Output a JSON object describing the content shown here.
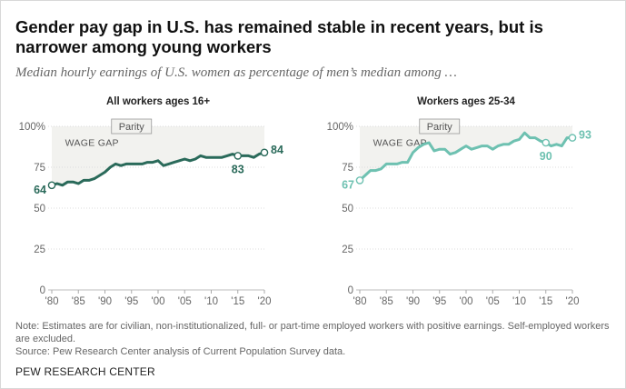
{
  "title": "Gender pay gap in U.S. has remained stable in recent years, but is narrower among young workers",
  "subtitle": "Median hourly earnings of U.S. women as percentage of men’s median among …",
  "notes": {
    "note": "Note: Estimates are for civilian, non-institutionalized, full- or part-time employed workers with positive earnings. Self-employed workers are excluded.",
    "source": "Source: Pew Research Center analysis of Current Population Survey data."
  },
  "brand": "PEW RESEARCH CENTER",
  "chart_data": [
    {
      "type": "line",
      "title": "All workers ages 16+",
      "color": "#2a6a5a",
      "x": [
        1980,
        1981,
        1982,
        1983,
        1984,
        1985,
        1986,
        1987,
        1988,
        1989,
        1990,
        1991,
        1992,
        1993,
        1994,
        1995,
        1996,
        1997,
        1998,
        1999,
        2000,
        2001,
        2002,
        2003,
        2004,
        2005,
        2006,
        2007,
        2008,
        2009,
        2010,
        2011,
        2012,
        2013,
        2014,
        2015,
        2016,
        2017,
        2018,
        2019,
        2020
      ],
      "values": [
        64,
        65,
        64,
        66,
        66,
        65,
        67,
        67,
        68,
        70,
        72,
        75,
        77,
        76,
        77,
        77,
        77,
        77,
        78,
        78,
        79,
        76,
        77,
        78,
        79,
        80,
        79,
        80,
        82,
        81,
        81,
        81,
        81,
        82,
        83,
        82,
        82,
        82,
        81,
        83,
        84
      ],
      "xlabel_ticks": [
        "'80",
        "'85",
        "'90",
        "'95",
        "'00",
        "'05",
        "'10",
        "'15",
        "'20"
      ],
      "tick_years": [
        1980,
        1985,
        1990,
        1995,
        2000,
        2005,
        2010,
        2015,
        2020
      ],
      "yticks": [
        0,
        25,
        50,
        75,
        100
      ],
      "ytick_labels": [
        "0",
        "25",
        "50",
        "75",
        "100%"
      ],
      "ylim": [
        0,
        100
      ],
      "annotations": {
        "start": "64",
        "mid": "83",
        "end": "84"
      },
      "parity_label": "Parity",
      "gap_label": "WAGE GAP"
    },
    {
      "type": "line",
      "title": "Workers ages 25-34",
      "color": "#6ec1b1",
      "x": [
        1980,
        1981,
        1982,
        1983,
        1984,
        1985,
        1986,
        1987,
        1988,
        1989,
        1990,
        1991,
        1992,
        1993,
        1994,
        1995,
        1996,
        1997,
        1998,
        1999,
        2000,
        2001,
        2002,
        2003,
        2004,
        2005,
        2006,
        2007,
        2008,
        2009,
        2010,
        2011,
        2012,
        2013,
        2014,
        2015,
        2016,
        2017,
        2018,
        2019,
        2020
      ],
      "values": [
        67,
        70,
        73,
        73,
        74,
        77,
        77,
        77,
        78,
        78,
        84,
        87,
        89,
        90,
        85,
        86,
        86,
        83,
        84,
        86,
        88,
        86,
        87,
        88,
        88,
        86,
        88,
        89,
        89,
        91,
        92,
        96,
        93,
        93,
        91,
        90,
        88,
        89,
        88,
        93,
        93
      ],
      "xlabel_ticks": [
        "'80",
        "'85",
        "'90",
        "'95",
        "'00",
        "'05",
        "'10",
        "'15",
        "'20"
      ],
      "tick_years": [
        1980,
        1985,
        1990,
        1995,
        2000,
        2005,
        2010,
        2015,
        2020
      ],
      "yticks": [
        0,
        25,
        50,
        75,
        100
      ],
      "ytick_labels": [
        "0",
        "25",
        "50",
        "75",
        "100%"
      ],
      "ylim": [
        0,
        100
      ],
      "annotations": {
        "start": "67",
        "mid": "90",
        "end": "93"
      },
      "parity_label": "Parity",
      "gap_label": "WAGE GAP"
    }
  ]
}
